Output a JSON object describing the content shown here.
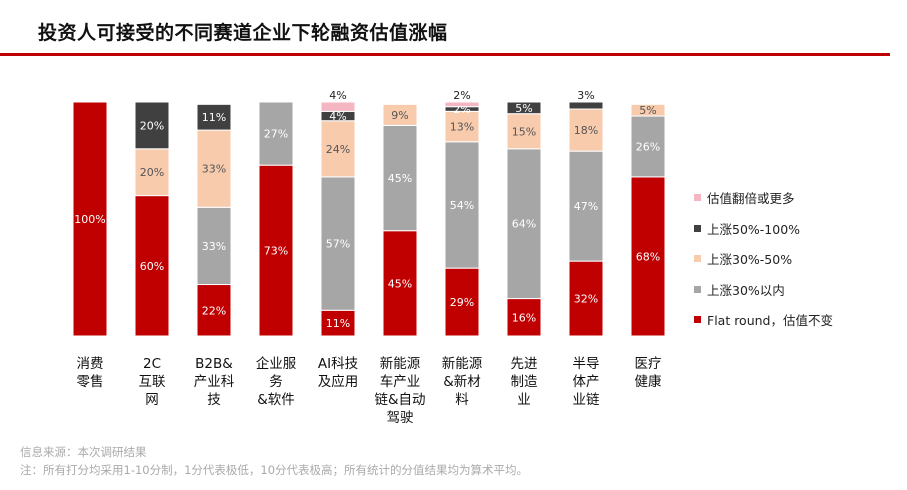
{
  "title": "投资人可接受的不同赛道企业下轮融资估值涨幅",
  "chart_data": {
    "type": "bar",
    "stacked": true,
    "percent": true,
    "ylim": [
      0,
      100
    ],
    "categories": [
      "消费\n零售",
      "2C\n互联\n网",
      "B2B&\n产业科\n技",
      "企业服\n务\n&软件",
      "AI科技\n及应用",
      "新能源\n车产业\n链&自动\n驾驶",
      "新能源\n&新材\n料",
      "先进\n制造\n业",
      "半导\n体产\n业链",
      "医疗\n健康"
    ],
    "series": [
      {
        "name": "Flat round，估值不变",
        "color": "#c00000",
        "values": [
          100,
          60,
          22,
          73,
          11,
          45,
          29,
          16,
          32,
          68
        ]
      },
      {
        "name": "上涨30%以内",
        "color": "#a6a6a6",
        "values": [
          0,
          0,
          33,
          27,
          57,
          45,
          54,
          64,
          47,
          26
        ]
      },
      {
        "name": "上涨30%-50%",
        "color": "#f8cbad",
        "values": [
          0,
          20,
          33,
          0,
          24,
          9,
          13,
          15,
          18,
          5
        ]
      },
      {
        "name": "上涨50%-100%",
        "color": "#404040",
        "values": [
          0,
          20,
          11,
          0,
          4,
          0,
          2,
          5,
          3,
          0
        ]
      },
      {
        "name": "估值翻倍或更多",
        "color": "#f4b6c2",
        "values": [
          0,
          0,
          0,
          0,
          4,
          0,
          2,
          0,
          0,
          0
        ]
      }
    ],
    "legend_position": "right"
  },
  "notes": {
    "source": "信息来源：本次调研结果",
    "note": "注：所有打分均采用1-10分制，1分代表极低，10分代表极高；所有统计的分值结果均为算术平均。"
  }
}
